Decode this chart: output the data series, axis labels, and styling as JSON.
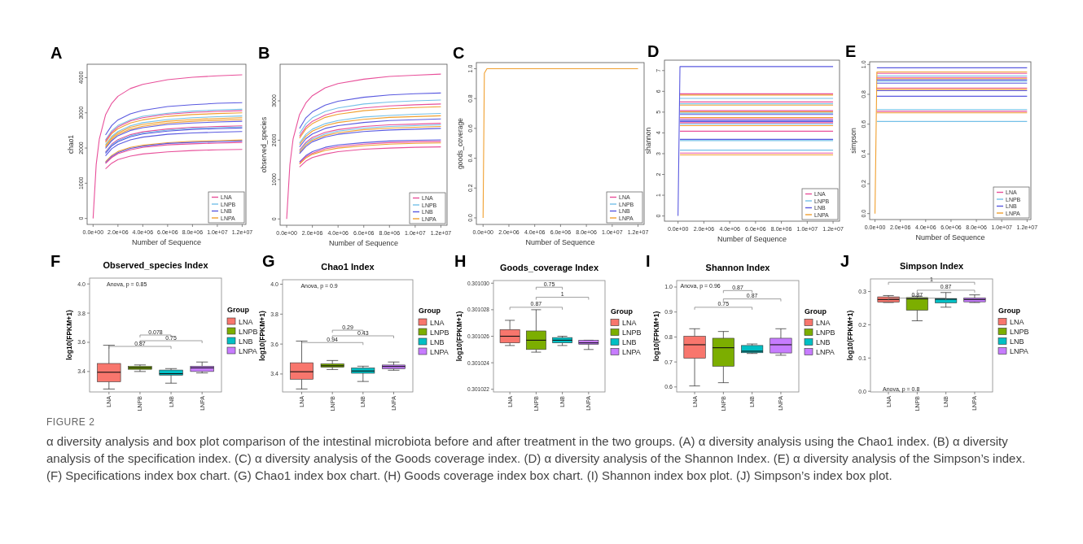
{
  "chart_data": [
    {
      "type": "line",
      "xlabel": "Number of Sequence",
      "ylabel": "chao1",
      "legend": "bottom right",
      "annotations": [
        "A"
      ],
      "xlim": [
        -480000,
        12300000
      ],
      "ylim": [
        -170,
        4380
      ],
      "xticks": [
        {
          "value": 0,
          "label": "0.0e+00"
        },
        {
          "value": 2000000,
          "label": "2.0e+06"
        },
        {
          "value": 4000000,
          "label": "4.0e+06"
        },
        {
          "value": 6000000,
          "label": "6.0e+06"
        },
        {
          "value": 8000000,
          "label": "8.0e+06"
        },
        {
          "value": 10000000,
          "label": "1.0e+07"
        },
        {
          "value": 12000000,
          "label": "1.2e+07"
        }
      ],
      "yticks": [
        0,
        1000,
        2000,
        3000,
        4000
      ],
      "x": [
        1000000,
        1500000,
        2000000,
        3000000,
        4000000,
        6000000,
        8000000,
        10000000,
        12000000
      ],
      "series": [
        {
          "name": "LNA",
          "color": "#e8509a",
          "x": [
            0,
            250000,
            500000,
            1000000,
            1500000,
            2000000,
            3000000,
            4000000,
            6000000,
            8000000,
            10000000,
            12000000
          ],
          "values": [
            0,
            1530,
            2250,
            2940,
            3270,
            3470,
            3690,
            3810,
            3940,
            4010,
            4050,
            4080
          ]
        },
        {
          "name": "LNPB",
          "color": "#74c0e8",
          "values": [
            2230,
            2490,
            2640,
            2800,
            2900,
            2990,
            3050,
            3080,
            3100
          ]
        },
        {
          "name": "LNB",
          "color": "#5a5ae0",
          "values": [
            2370,
            2640,
            2800,
            2970,
            3070,
            3180,
            3230,
            3270,
            3290
          ]
        },
        {
          "name": "LNPA",
          "color": "#f0a030",
          "values": [
            2160,
            2410,
            2550,
            2710,
            2800,
            2900,
            2950,
            2980,
            3000
          ]
        },
        {
          "color": "#e8509a",
          "values": [
            2200,
            2450,
            2600,
            2770,
            2860,
            2960,
            3010,
            3040,
            3060
          ]
        },
        {
          "color": "#74c0e8",
          "values": [
            2100,
            2330,
            2470,
            2630,
            2720,
            2810,
            2860,
            2890,
            2910
          ]
        },
        {
          "color": "#f0a030",
          "values": [
            2060,
            2290,
            2430,
            2590,
            2670,
            2760,
            2810,
            2840,
            2860
          ]
        },
        {
          "color": "#f0a030",
          "values": [
            2020,
            2250,
            2390,
            2540,
            2620,
            2710,
            2760,
            2790,
            2810
          ]
        },
        {
          "color": "#5a5ae0",
          "values": [
            1990,
            2210,
            2350,
            2500,
            2580,
            2670,
            2710,
            2740,
            2760
          ]
        },
        {
          "color": "#e8509a",
          "values": [
            1890,
            2110,
            2240,
            2380,
            2460,
            2540,
            2590,
            2610,
            2630
          ]
        },
        {
          "color": "#74c0e8",
          "values": [
            1870,
            2090,
            2210,
            2350,
            2430,
            2510,
            2560,
            2580,
            2600
          ]
        },
        {
          "color": "#5a5ae0",
          "values": [
            1850,
            2060,
            2180,
            2320,
            2400,
            2480,
            2530,
            2550,
            2570
          ]
        },
        {
          "color": "#5a5ae0",
          "values": [
            1780,
            1980,
            2100,
            2230,
            2310,
            2390,
            2430,
            2450,
            2470
          ]
        },
        {
          "color": "#f0a030",
          "values": [
            1610,
            1790,
            1900,
            2020,
            2080,
            2150,
            2190,
            2210,
            2230
          ]
        },
        {
          "color": "#5a5ae0",
          "values": [
            1580,
            1760,
            1870,
            1990,
            2050,
            2130,
            2160,
            2180,
            2200
          ]
        },
        {
          "color": "#e8509a",
          "values": [
            1560,
            1730,
            1840,
            1950,
            2020,
            2090,
            2120,
            2140,
            2160
          ]
        },
        {
          "color": "#e8509a",
          "values": [
            1410,
            1570,
            1670,
            1770,
            1830,
            1890,
            1930,
            1950,
            1960
          ]
        }
      ]
    },
    {
      "type": "line",
      "xlabel": "Number of Sequence",
      "ylabel": "observed_species",
      "legend": "bottom right",
      "annotations": [
        "B"
      ],
      "xlim": [
        -510000,
        12480000
      ],
      "ylim": [
        -160,
        3930
      ],
      "xticks": [
        {
          "value": 0,
          "label": "0.0e+00"
        },
        {
          "value": 2000000,
          "label": "2.0e+06"
        },
        {
          "value": 4000000,
          "label": "4.0e+06"
        },
        {
          "value": 6000000,
          "label": "6.0e+06"
        },
        {
          "value": 8000000,
          "label": "8.0e+06"
        },
        {
          "value": 10000000,
          "label": "1.0e+07"
        },
        {
          "value": 12000000,
          "label": "1.2e+07"
        }
      ],
      "yticks": [
        0,
        1000,
        2000,
        3000
      ],
      "x": [
        1000000,
        1500000,
        2000000,
        3000000,
        4000000,
        6000000,
        8000000,
        10000000,
        12000000
      ],
      "series": [
        {
          "name": "LNA",
          "color": "#e8509a",
          "x": [
            0,
            250000,
            500000,
            1000000,
            1500000,
            2000000,
            3000000,
            4000000,
            6000000,
            8000000,
            10000000,
            12000000
          ],
          "values": [
            0,
            1380,
            2030,
            2650,
            2950,
            3130,
            3330,
            3440,
            3550,
            3620,
            3650,
            3680
          ]
        },
        {
          "name": "LNPB",
          "color": "#74c0e8",
          "values": [
            2170,
            2420,
            2570,
            2730,
            2820,
            2920,
            2970,
            3000,
            3020
          ]
        },
        {
          "name": "LNB",
          "color": "#5a5ae0",
          "values": [
            2300,
            2570,
            2720,
            2890,
            2990,
            3090,
            3150,
            3180,
            3200
          ]
        },
        {
          "name": "LNPA",
          "color": "#f0a030",
          "values": [
            2050,
            2290,
            2420,
            2580,
            2660,
            2750,
            2800,
            2830,
            2850
          ]
        },
        {
          "color": "#e8509a",
          "values": [
            2100,
            2340,
            2480,
            2640,
            2730,
            2820,
            2870,
            2900,
            2920
          ]
        },
        {
          "color": "#74c0e8",
          "values": [
            1930,
            2150,
            2280,
            2420,
            2500,
            2590,
            2630,
            2660,
            2680
          ]
        },
        {
          "color": "#f0a030",
          "values": [
            1890,
            2100,
            2230,
            2370,
            2450,
            2530,
            2580,
            2600,
            2620
          ]
        },
        {
          "color": "#5a5ae0",
          "values": [
            1830,
            2040,
            2160,
            2300,
            2370,
            2450,
            2500,
            2520,
            2540
          ]
        },
        {
          "color": "#e8509a",
          "values": [
            1750,
            1950,
            2070,
            2200,
            2270,
            2350,
            2390,
            2410,
            2430
          ]
        },
        {
          "color": "#74c0e8",
          "values": [
            1720,
            1920,
            2030,
            2160,
            2230,
            2310,
            2350,
            2370,
            2390
          ]
        },
        {
          "color": "#f0a030",
          "values": [
            1690,
            1880,
            2000,
            2120,
            2190,
            2270,
            2310,
            2330,
            2350
          ]
        },
        {
          "color": "#5a5ae0",
          "values": [
            1660,
            1840,
            1960,
            2080,
            2150,
            2220,
            2260,
            2280,
            2300
          ]
        },
        {
          "color": "#5a5ae0",
          "values": [
            1450,
            1610,
            1710,
            1820,
            1880,
            1940,
            1980,
            2000,
            2010
          ]
        },
        {
          "color": "#e8509a",
          "values": [
            1420,
            1580,
            1670,
            1780,
            1840,
            1900,
            1940,
            1960,
            1970
          ]
        },
        {
          "color": "#f0a030",
          "values": [
            1390,
            1550,
            1640,
            1740,
            1800,
            1860,
            1900,
            1920,
            1930
          ]
        },
        {
          "color": "#e8509a",
          "values": [
            1320,
            1470,
            1560,
            1650,
            1710,
            1770,
            1800,
            1820,
            1830
          ]
        }
      ]
    },
    {
      "type": "line",
      "xlabel": "Number of Sequence",
      "ylabel": "goods_coverage",
      "legend": "bottom right",
      "annotations": [
        "C"
      ],
      "xlim": [
        -520000,
        12470000
      ],
      "ylim": [
        -0.044,
        1.041
      ],
      "xticks": [
        {
          "value": 0,
          "label": "0.0e+00"
        },
        {
          "value": 2000000,
          "label": "2.0e+06"
        },
        {
          "value": 4000000,
          "label": "4.0e+06"
        },
        {
          "value": 6000000,
          "label": "6.0e+06"
        },
        {
          "value": 8000000,
          "label": "8.0e+06"
        },
        {
          "value": 10000000,
          "label": "1.0e+07"
        },
        {
          "value": 12000000,
          "label": "1.2e+07"
        }
      ],
      "yticks": [
        {
          "value": 0,
          "label": "0.0"
        },
        0.2,
        0.4,
        0.6,
        0.8,
        {
          "value": 1,
          "label": "1.0"
        }
      ],
      "x": [
        0,
        100000,
        300000,
        12000000
      ],
      "series": [
        {
          "name": "LNA",
          "color": "#e8509a",
          "values": [
            null,
            null,
            null,
            null
          ]
        },
        {
          "name": "LNPB",
          "color": "#74c0e8",
          "values": [
            null,
            null,
            null,
            null
          ]
        },
        {
          "name": "LNB",
          "color": "#5a5ae0",
          "values": [
            null,
            null,
            null,
            null
          ]
        },
        {
          "name": "LNPA",
          "color": "#f0a030",
          "values": [
            0,
            0.97,
            1,
            1
          ]
        }
      ]
    },
    {
      "type": "line",
      "xlabel": "Number of Sequence",
      "ylabel": "shannon",
      "legend": "bottom right",
      "annotations": [
        "D"
      ],
      "xlim": [
        -1050000,
        12500000
      ],
      "ylim": [
        -0.25,
        7.5
      ],
      "xticks": [
        {
          "value": 0,
          "label": "0.0e+00"
        },
        {
          "value": 2000000,
          "label": "2.0e+06"
        },
        {
          "value": 4000000,
          "label": "4.0e+06"
        },
        {
          "value": 6000000,
          "label": "6.0e+06"
        },
        {
          "value": 8000000,
          "label": "8.0e+06"
        },
        {
          "value": 10000000,
          "label": "1.0e+07"
        },
        {
          "value": 12000000,
          "label": "1.2e+07"
        }
      ],
      "yticks": [
        0,
        1,
        2,
        3,
        4,
        5,
        6,
        7
      ],
      "x": [
        150000,
        12000000
      ],
      "series": [
        {
          "name": "LNA",
          "color": "#e8509a",
          "values": [
            5.88,
            5.88
          ]
        },
        {
          "name": "LNPB",
          "color": "#74c0e8",
          "values": [
            5.66,
            5.66
          ]
        },
        {
          "name": "LNB",
          "color": "#5a5ae0",
          "x": [
            0,
            150000,
            12000000
          ],
          "values": [
            0,
            7.19,
            7.19
          ]
        },
        {
          "name": "LNPA",
          "color": "#f0a030",
          "values": [
            5.82,
            5.82
          ]
        },
        {
          "color": "#e8509a",
          "values": [
            5.49,
            5.49
          ]
        },
        {
          "color": "#74c0e8",
          "values": [
            5.4,
            5.4
          ]
        },
        {
          "color": "#f0a030",
          "values": [
            5.34,
            5.34
          ]
        },
        {
          "color": "#e8509a",
          "values": [
            5.07,
            5.07
          ]
        },
        {
          "color": "#f0a030",
          "values": [
            5.01,
            5.01
          ]
        },
        {
          "color": "#74c0e8",
          "values": [
            4.95,
            4.95
          ]
        },
        {
          "color": "#5a5ae0",
          "values": [
            4.89,
            4.89
          ]
        },
        {
          "color": "#f0a030",
          "values": [
            4.74,
            4.74
          ]
        },
        {
          "color": "#e8509a",
          "values": [
            4.68,
            4.68
          ]
        },
        {
          "color": "#5a5ae0",
          "values": [
            4.61,
            4.61
          ]
        },
        {
          "color": "#5a5ae0",
          "values": [
            4.55,
            4.55
          ]
        },
        {
          "color": "#e8509a",
          "values": [
            4.49,
            4.49
          ]
        },
        {
          "color": "#74c0e8",
          "values": [
            4.43,
            4.43
          ]
        },
        {
          "color": "#f0a030",
          "values": [
            4.35,
            4.35
          ]
        },
        {
          "color": "#e8509a",
          "values": [
            4.08,
            4.08
          ]
        },
        {
          "color": "#5a5ae0",
          "values": [
            3.69,
            3.69
          ]
        },
        {
          "color": "#74c0e8",
          "values": [
            3.63,
            3.63
          ]
        },
        {
          "color": "#74c0e8",
          "values": [
            3.17,
            3.17
          ]
        },
        {
          "color": "#e8509a",
          "values": [
            3.03,
            3.03
          ]
        },
        {
          "color": "#f0a030",
          "values": [
            2.94,
            2.94
          ]
        }
      ]
    },
    {
      "type": "line",
      "xlabel": "Number of Sequence",
      "ylabel": "simpson",
      "legend": "bottom right",
      "annotations": [
        "E"
      ],
      "xlim": [
        -420000,
        12300000
      ],
      "ylim": [
        -0.04,
        1.018
      ],
      "xticks": [
        {
          "value": 0,
          "label": "0.0e+00"
        },
        {
          "value": 2000000,
          "label": "2.0e+06"
        },
        {
          "value": 4000000,
          "label": "4.0e+06"
        },
        {
          "value": 6000000,
          "label": "6.0e+06"
        },
        {
          "value": 8000000,
          "label": "8.0e+06"
        },
        {
          "value": 10000000,
          "label": "1.0e+07"
        },
        {
          "value": 12000000,
          "label": "1.2e+07"
        }
      ],
      "yticks": [
        {
          "value": 0,
          "label": "0.0"
        },
        0.2,
        0.4,
        0.6,
        0.8,
        {
          "value": 1,
          "label": "1.0"
        }
      ],
      "x": [
        150000,
        12000000
      ],
      "series": [
        {
          "name": "LNA",
          "color": "#e8509a",
          "values": [
            0.94,
            0.94
          ]
        },
        {
          "name": "LNPB",
          "color": "#74c0e8",
          "values": [
            0.924,
            0.924
          ]
        },
        {
          "name": "LNB",
          "color": "#5a5ae0",
          "values": [
            0.978,
            0.978
          ]
        },
        {
          "name": "LNPA",
          "color": "#f0a030",
          "x": [
            0,
            150000,
            12000000
          ],
          "values": [
            0,
            0.95,
            0.95
          ]
        },
        {
          "color": "#e8509a",
          "values": [
            0.913,
            0.913
          ]
        },
        {
          "color": "#f0a030",
          "values": [
            0.905,
            0.905
          ]
        },
        {
          "color": "#5a5ae0",
          "values": [
            0.896,
            0.896
          ]
        },
        {
          "color": "#74c0e8",
          "values": [
            0.887,
            0.887
          ]
        },
        {
          "color": "#5a5ae0",
          "values": [
            0.875,
            0.875
          ]
        },
        {
          "color": "#e8509a",
          "values": [
            0.842,
            0.842
          ]
        },
        {
          "color": "#f0a030",
          "values": [
            0.833,
            0.833
          ]
        },
        {
          "color": "#5a5ae0",
          "values": [
            0.824,
            0.824
          ]
        },
        {
          "color": "#5a5ae0",
          "values": [
            0.787,
            0.787
          ]
        },
        {
          "color": "#74c0e8",
          "values": [
            0.698,
            0.698
          ]
        },
        {
          "color": "#e8509a",
          "values": [
            0.686,
            0.686
          ]
        },
        {
          "color": "#f0a030",
          "values": [
            0.676,
            0.676
          ]
        },
        {
          "color": "#74c0e8",
          "values": [
            0.618,
            0.618
          ]
        }
      ]
    },
    {
      "type": "box",
      "title": "Observed_species Index",
      "ylabel": "log10(FPKM+1)",
      "categories": [
        "LNA",
        "LNPB",
        "LNB",
        "LNPA"
      ],
      "legend": "right",
      "legend_title": "Group",
      "ylim": [
        3.26,
        4.04
      ],
      "yticks": [
        3.4,
        3.6,
        3.8,
        {
          "value": 4,
          "label": "4.0"
        }
      ],
      "series": [
        {
          "name": "LNA",
          "color": "#f8766d",
          "boxes": [
            {
              "low": 3.28,
              "q1": 3.33,
              "median": 3.395,
              "q3": 3.455,
              "high": 3.58
            },
            null,
            null,
            null
          ]
        },
        {
          "name": "LNPB",
          "color": "#7cae00",
          "boxes": [
            null,
            {
              "low": 3.4,
              "q1": 3.415,
              "median": 3.425,
              "q3": 3.435,
              "high": 3.445
            },
            null,
            null
          ]
        },
        {
          "name": "LNB",
          "color": "#00bfc4",
          "boxes": [
            null,
            null,
            {
              "low": 3.32,
              "q1": 3.375,
              "median": 3.385,
              "q3": 3.41,
              "high": 3.42
            },
            null
          ]
        },
        {
          "name": "LNPA",
          "color": "#c77cff",
          "boxes": [
            null,
            null,
            null,
            {
              "low": 3.39,
              "q1": 3.4,
              "median": 3.425,
              "q3": 3.436,
              "high": 3.465
            }
          ]
        }
      ],
      "annotations": [
        "F",
        "Anova, p = 0.85",
        "0.078",
        "0.75",
        "0.87"
      ]
    },
    {
      "type": "box",
      "title": "Chao1 Index",
      "ylabel": "log10(FPKM+1)",
      "categories": [
        "LNA",
        "LNPB",
        "LNB",
        "LNPA"
      ],
      "legend": "right",
      "legend_title": "Group",
      "ylim": [
        3.28,
        4.03
      ],
      "yticks": [
        3.4,
        3.6,
        3.8,
        {
          "value": 4,
          "label": "4.0"
        }
      ],
      "series": [
        {
          "name": "LNA",
          "color": "#f8766d",
          "boxes": [
            {
              "low": 3.3,
              "q1": 3.365,
              "median": 3.415,
              "q3": 3.475,
              "high": 3.62
            },
            null,
            null,
            null
          ]
        },
        {
          "name": "LNPB",
          "color": "#7cae00",
          "boxes": [
            null,
            {
              "low": 3.43,
              "q1": 3.445,
              "median": 3.455,
              "q3": 3.468,
              "high": 3.49
            },
            null,
            null
          ]
        },
        {
          "name": "LNB",
          "color": "#00bfc4",
          "boxes": [
            null,
            null,
            {
              "low": 3.35,
              "q1": 3.405,
              "median": 3.42,
              "q3": 3.44,
              "high": 3.452
            },
            null
          ]
        },
        {
          "name": "LNPA",
          "color": "#c77cff",
          "boxes": [
            null,
            null,
            null,
            {
              "low": 3.425,
              "q1": 3.435,
              "median": 3.45,
              "q3": 3.46,
              "high": 3.48
            }
          ]
        }
      ],
      "annotations": [
        "G",
        "Anova, p = 0.9",
        "0.29",
        "0.43",
        "0.94"
      ]
    },
    {
      "type": "box",
      "title": "Goods_coverage Index",
      "ylabel": "log10(FPKM+1)",
      "categories": [
        "LNA",
        "LNPB",
        "LNB",
        "LNPA"
      ],
      "legend": "right",
      "legend_title": "Group",
      "ylim": [
        0.3010218,
        0.3010302
      ],
      "yticks": [
        {
          "value": 0.301022,
          "label": "0.301022"
        },
        {
          "value": 0.301024,
          "label": "0.301024"
        },
        {
          "value": 0.301026,
          "label": "0.301026"
        },
        {
          "value": 0.301028,
          "label": "0.301028"
        },
        {
          "value": 0.30103,
          "label": "0.301030"
        }
      ],
      "series": [
        {
          "name": "LNA",
          "color": "#f8766d",
          "boxes": [
            {
              "low": 0.3010253,
              "q1": 0.3010255,
              "median": 0.301026,
              "q3": 0.3010265,
              "high": 0.3010272
            },
            null,
            null,
            null
          ]
        },
        {
          "name": "LNPB",
          "color": "#7cae00",
          "boxes": [
            null,
            {
              "low": 0.3010248,
              "q1": 0.301025,
              "median": 0.3010257,
              "q3": 0.3010264,
              "high": 0.301028
            },
            null,
            null
          ]
        },
        {
          "name": "LNB",
          "color": "#00bfc4",
          "boxes": [
            null,
            null,
            {
              "low": 0.3010253,
              "q1": 0.3010255,
              "median": 0.3010257,
              "q3": 0.3010259,
              "high": 0.301026
            },
            null
          ]
        },
        {
          "name": "LNPA",
          "color": "#c77cff",
          "boxes": [
            null,
            null,
            null,
            {
              "low": 0.301025,
              "q1": 0.3010254,
              "median": 0.3010255,
              "q3": 0.3010257,
              "high": 0.3010257
            }
          ]
        }
      ],
      "annotations": [
        "H",
        "0.75",
        "1",
        "0.87"
      ]
    },
    {
      "type": "box",
      "title": "Shannon Index",
      "ylabel": "log10(FPKM+1)",
      "categories": [
        "LNA",
        "LNPB",
        "LNB",
        "LNPA"
      ],
      "legend": "right",
      "legend_title": "Group",
      "ylim": [
        0.58,
        1.026
      ],
      "yticks": [
        0.6,
        0.7,
        0.8,
        0.9,
        {
          "value": 1,
          "label": "1.0"
        }
      ],
      "series": [
        {
          "name": "LNA",
          "color": "#f8766d",
          "boxes": [
            {
              "low": 0.604,
              "q1": 0.715,
              "median": 0.769,
              "q3": 0.803,
              "high": 0.833
            },
            null,
            null,
            null
          ]
        },
        {
          "name": "LNPB",
          "color": "#7cae00",
          "boxes": [
            null,
            {
              "low": 0.617,
              "q1": 0.683,
              "median": 0.757,
              "q3": 0.795,
              "high": 0.822
            },
            null,
            null
          ]
        },
        {
          "name": "LNB",
          "color": "#00bfc4",
          "boxes": [
            null,
            null,
            {
              "low": 0.734,
              "q1": 0.737,
              "median": 0.743,
              "q3": 0.766,
              "high": 0.772
            },
            null
          ]
        },
        {
          "name": "LNPA",
          "color": "#c77cff",
          "boxes": [
            null,
            null,
            null,
            {
              "low": 0.727,
              "q1": 0.736,
              "median": 0.769,
              "q3": 0.795,
              "high": 0.833
            }
          ]
        }
      ],
      "annotations": [
        "I",
        "Anova, p = 0.96",
        "0.87",
        "0.87",
        "0.75"
      ]
    },
    {
      "type": "box",
      "title": "Simpson Index",
      "ylabel": "log10(FPKM+1)",
      "categories": [
        "LNA",
        "LNPB",
        "LNB",
        "LNPA"
      ],
      "legend": "right",
      "legend_title": "Group",
      "ylim": [
        -0.002,
        0.338
      ],
      "yticks": [
        {
          "value": 0,
          "label": "0.0"
        },
        0.1,
        0.2,
        0.3
      ],
      "series": [
        {
          "name": "LNA",
          "color": "#f8766d",
          "boxes": [
            {
              "low": 0.267,
              "q1": 0.268,
              "median": 0.276,
              "q3": 0.284,
              "high": 0.288
            },
            null,
            null,
            null
          ]
        },
        {
          "name": "LNPB",
          "color": "#7cae00",
          "boxes": [
            null,
            {
              "low": 0.212,
              "q1": 0.244,
              "median": 0.278,
              "q3": 0.282,
              "high": 0.286
            },
            null,
            null
          ]
        },
        {
          "name": "LNB",
          "color": "#00bfc4",
          "boxes": [
            null,
            null,
            {
              "low": 0.253,
              "q1": 0.266,
              "median": 0.277,
              "q3": 0.279,
              "high": 0.297
            },
            null
          ]
        },
        {
          "name": "LNPA",
          "color": "#c77cff",
          "boxes": [
            null,
            null,
            null,
            {
              "low": 0.267,
              "q1": 0.269,
              "median": 0.276,
              "q3": 0.281,
              "high": 0.29
            }
          ]
        }
      ],
      "annotations": [
        "J",
        "Anova, p = 0.8",
        "1",
        "0.87",
        "0.87"
      ]
    },
    {
      "type": "other",
      "title": "FIGURE 2",
      "annotations": [
        "α diversity analysis and box plot comparison of the intestinal microbiota before and after treatment in the two groups. (A) α diversity analysis using the Chao1 index. (B) α diversity analysis of the specification index. (C) α diversity analysis of the Goods coverage index. (D) α diversity analysis of the Shannon Index. (E) α diversity analysis of the Simpson’s index. (F) Specifications index box chart. (G) Chao1 index box chart. (H) Goods coverage index box chart. (I) Shannon index box plot. (J) Simpson’s index box plot."
      ]
    }
  ]
}
